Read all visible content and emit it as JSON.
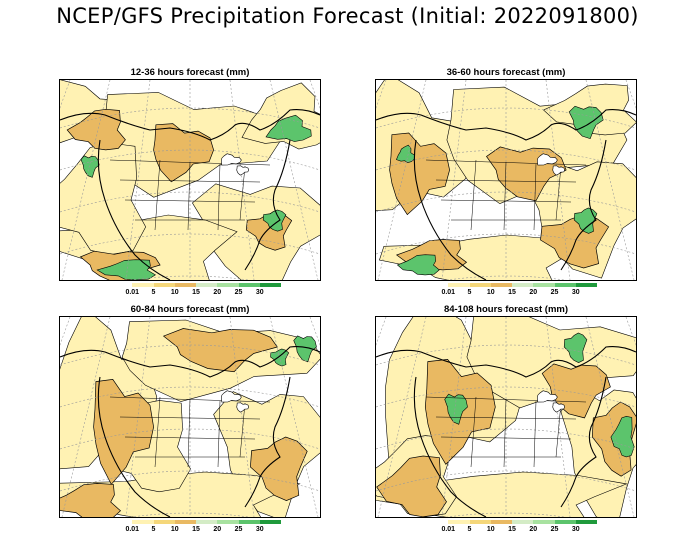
{
  "title": "NCEP/GFS Precipitation Forecast (Initial: 2022091800)",
  "colors": {
    "light_yellow": "#fff2b3",
    "yellow": "#f5d77a",
    "orange": "#e9b962",
    "light_green": "#a8e2a0",
    "green": "#5cc46c",
    "dark_green": "#1f9a3c",
    "contour": "#000000",
    "grid": "#9a9a9a"
  },
  "legend": {
    "labels": [
      "0.01",
      "5",
      "10",
      "15",
      "20",
      "25",
      "30"
    ],
    "colors": [
      "#ffffff",
      "#fff2b3",
      "#f5d77a",
      "#e9b962",
      "#d4ecc6",
      "#a8e2a0",
      "#5cc46c",
      "#1f9a3c"
    ]
  },
  "panels": [
    {
      "title": "12-36 hours forecast (mm)"
    },
    {
      "title": "36-60 hours forecast (mm)"
    },
    {
      "title": "60-84 hours forecast (mm)"
    },
    {
      "title": "84-108 hours forecast (mm)"
    }
  ]
}
